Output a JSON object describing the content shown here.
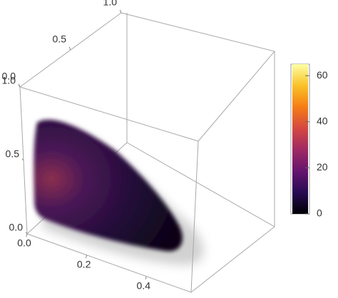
{
  "chart_data": {
    "type": "density3d",
    "xlim": [
      0,
      0.55
    ],
    "xticks": [
      {
        "value": 0,
        "label": "0.0"
      },
      0.2,
      0.4
    ],
    "ylim": [
      0,
      1
    ],
    "yticks": [
      {
        "value": 0,
        "label": "0.0"
      },
      0.5,
      {
        "value": 1,
        "label": "1.0"
      }
    ],
    "zlim": [
      0,
      1
    ],
    "zticks": [
      {
        "value": 0,
        "label": "0.0"
      },
      0.5,
      {
        "value": 1,
        "label": "1.0"
      }
    ],
    "clim": [
      0,
      65
    ],
    "cticks": [
      0,
      20,
      40,
      60
    ],
    "colormap": [
      "#000004",
      "#280b53",
      "#65156e",
      "#9f2a63",
      "#d44842",
      "#f57d15",
      "#fac228",
      "#fcffa4"
    ]
  }
}
